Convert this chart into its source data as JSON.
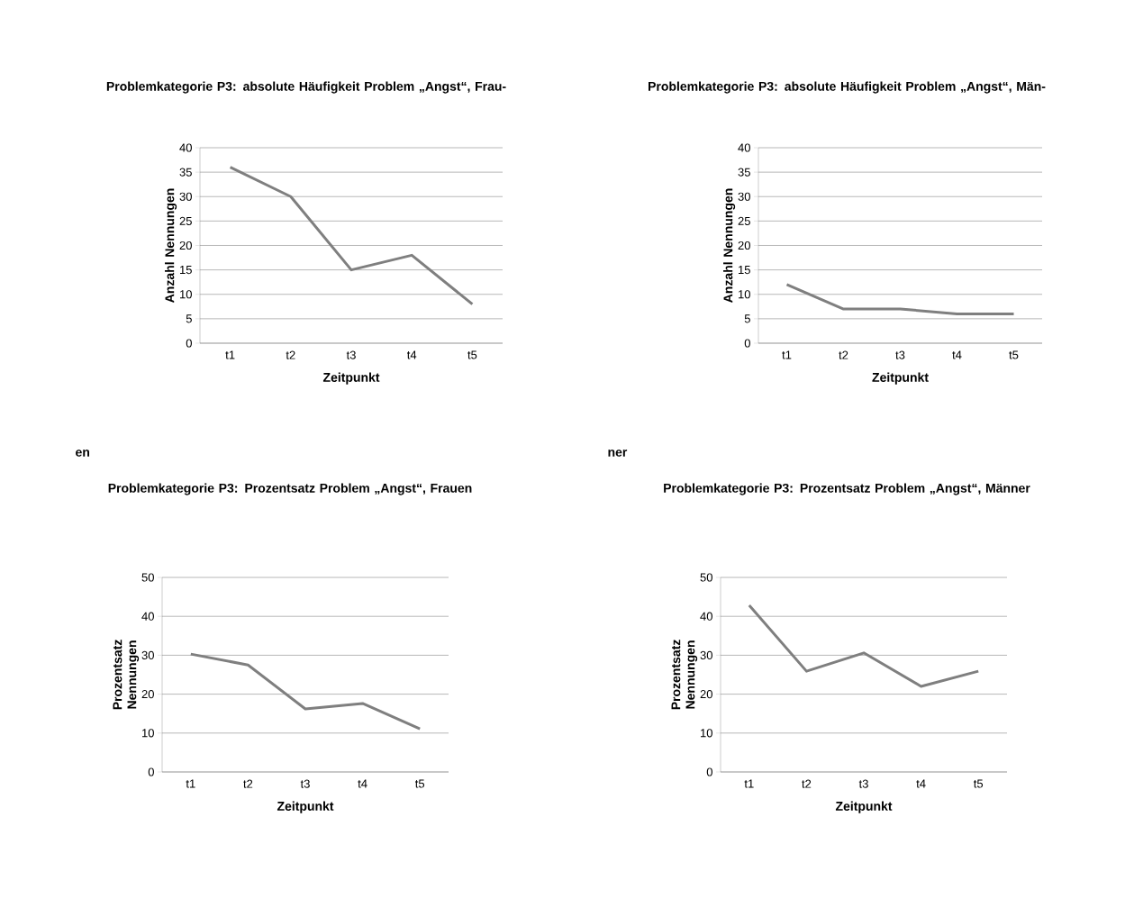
{
  "chart_data": [
    {
      "type": "line",
      "title": "Problemkategorie P3: absolute Häufigkeit Problem „Angst“, Frau-",
      "annotations": [
        "en"
      ],
      "xlabel": "Zeitpunkt",
      "ylabel": "Anzahl Nennungen",
      "categories": [
        "t1",
        "t2",
        "t3",
        "t4",
        "t5"
      ],
      "values": [
        36,
        30,
        15,
        18,
        8
      ],
      "color": "#7f7f7f",
      "ylim": [
        0,
        40
      ],
      "yticks": [
        0,
        5,
        10,
        15,
        20,
        25,
        30,
        35,
        40
      ],
      "grid": "y"
    },
    {
      "type": "line",
      "title": "Problemkategorie P3: absolute Häufigkeit Problem „Angst“, Män-",
      "annotations": [
        "ner"
      ],
      "xlabel": "Zeitpunkt",
      "ylabel": "Anzahl Nennungen",
      "categories": [
        "t1",
        "t2",
        "t3",
        "t4",
        "t5"
      ],
      "values": [
        12,
        7,
        7,
        6,
        6
      ],
      "color": "#7f7f7f",
      "ylim": [
        0,
        40
      ],
      "yticks": [
        0,
        5,
        10,
        15,
        20,
        25,
        30,
        35,
        40
      ],
      "grid": "y"
    },
    {
      "type": "line",
      "title": "Problemkategorie P3: Prozentsatz Problem „Angst“, Frauen",
      "xlabel": "Zeitpunkt",
      "ylabel": "Prozentsatz Nennungen",
      "categories": [
        "t1",
        "t2",
        "t3",
        "t4",
        "t5"
      ],
      "values": [
        30.3,
        27.5,
        16.2,
        17.6,
        11.1
      ],
      "color": "#7f7f7f",
      "ylim": [
        0,
        50
      ],
      "yticks": [
        0,
        10,
        20,
        30,
        40,
        50
      ],
      "grid": "y"
    },
    {
      "type": "line",
      "title": "Problemkategorie P3: Prozentsatz Problem „Angst“, Männer",
      "xlabel": "Zeitpunkt",
      "ylabel": "Prozentsatz Nennungen",
      "categories": [
        "t1",
        "t2",
        "t3",
        "t4",
        "t5"
      ],
      "values": [
        42.8,
        25.9,
        30.6,
        22,
        25.9
      ],
      "color": "#7f7f7f",
      "ylim": [
        0,
        50
      ],
      "yticks": [
        0,
        10,
        20,
        30,
        40,
        50
      ],
      "grid": "y"
    }
  ]
}
